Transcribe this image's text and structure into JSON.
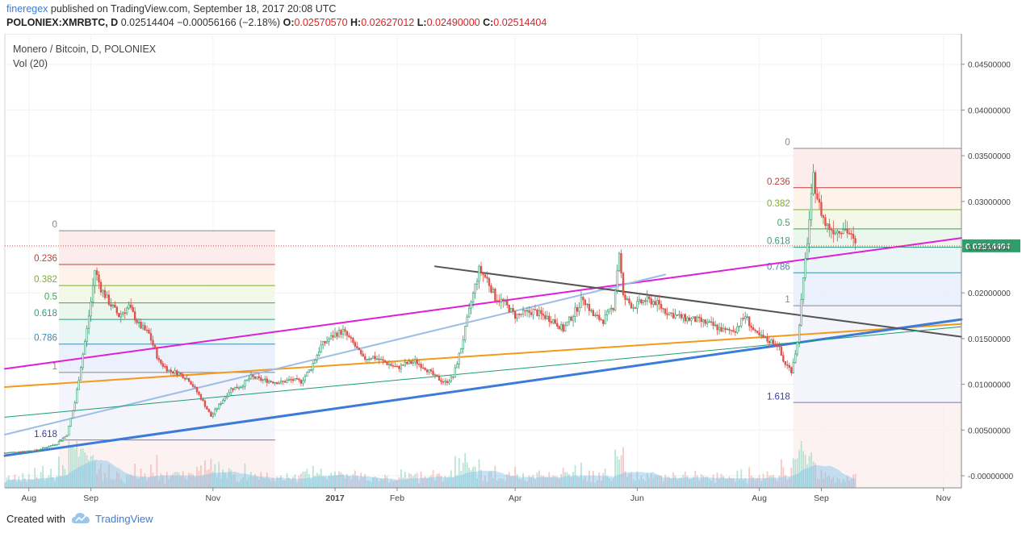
{
  "header": {
    "author": "fineregex",
    "published": "published on TradingView.com, September 18, 2017 20:08 UTC",
    "symbol": "POLONIEX:XMRBTC, D",
    "last": "0.02514404",
    "change": "−0.00056166 (−2.18%)",
    "o_label": "O:",
    "o_value": "0.02570570",
    "h_label": "H:",
    "h_value": "0.02627012",
    "l_label": "L:",
    "l_value": "0.02490000",
    "c_label": "C:",
    "c_value": "0.02514404"
  },
  "legend": {
    "title": "Monero / Bitcoin, D, POLONIEX",
    "volume": "Vol (20)"
  },
  "footer": {
    "created_with": "Created with",
    "brand": "TradingView"
  },
  "colors": {
    "up": "#2e9e6b",
    "down": "#e0514b",
    "magenta": "#e01ed6",
    "orange": "#f49a16",
    "blue": "#3d7bd9",
    "light_blue": "#9dbde8",
    "gray": "#555555",
    "green": "#1a9e6e",
    "last_price": "#2e9e6b",
    "volume": "#7ec3ea"
  },
  "chart_data": {
    "type": "candlestick",
    "title": "Monero / Bitcoin, D, POLONIEX",
    "y_ticks": [
      "0.04500000",
      "0.04000000",
      "0.03500000",
      "0.03000000",
      "0.02500000",
      "0.02000000",
      "0.01500000",
      "0.01000000",
      "0.00500000",
      "-0.00000000"
    ],
    "y_tick_values": [
      0.045,
      0.04,
      0.035,
      0.03,
      0.025,
      0.02,
      0.015,
      0.01,
      0.005,
      0.0
    ],
    "ylim": [
      0.0,
      0.045
    ],
    "x_ticks": [
      "Aug",
      "Sep",
      "Nov",
      "2017",
      "Feb",
      "Apr",
      "Jun",
      "Aug",
      "Sep",
      "Nov"
    ],
    "x_tick_dates": [
      "2016-08-01",
      "2016-09-01",
      "2016-11-01",
      "2017-01-01",
      "2017-02-01",
      "2017-04-01",
      "2017-06-01",
      "2017-08-01",
      "2017-09-01",
      "2017-11-01"
    ],
    "last_price": "0.02514404",
    "last_price_value": 0.02514404,
    "price_path": [
      [
        "2016-07-20",
        0.0025
      ],
      [
        "2016-08-05",
        0.0028
      ],
      [
        "2016-08-15",
        0.0035
      ],
      [
        "2016-08-20",
        0.0045
      ],
      [
        "2016-08-24",
        0.008
      ],
      [
        "2016-08-27",
        0.012
      ],
      [
        "2016-08-30",
        0.016
      ],
      [
        "2016-09-01",
        0.019
      ],
      [
        "2016-09-03",
        0.0225
      ],
      [
        "2016-09-06",
        0.0205
      ],
      [
        "2016-09-10",
        0.019
      ],
      [
        "2016-09-15",
        0.0175
      ],
      [
        "2016-09-20",
        0.0185
      ],
      [
        "2016-09-25",
        0.0165
      ],
      [
        "2016-09-30",
        0.0155
      ],
      [
        "2016-10-05",
        0.0125
      ],
      [
        "2016-10-10",
        0.0115
      ],
      [
        "2016-10-15",
        0.0112
      ],
      [
        "2016-10-20",
        0.0105
      ],
      [
        "2016-10-26",
        0.0085
      ],
      [
        "2016-10-31",
        0.0065
      ],
      [
        "2016-11-05",
        0.008
      ],
      [
        "2016-11-10",
        0.0095
      ],
      [
        "2016-11-15",
        0.0098
      ],
      [
        "2016-11-20",
        0.0108
      ],
      [
        "2016-11-25",
        0.0105
      ],
      [
        "2016-12-01",
        0.0103
      ],
      [
        "2016-12-05",
        0.0102
      ],
      [
        "2016-12-10",
        0.0105
      ],
      [
        "2016-12-15",
        0.0103
      ],
      [
        "2016-12-20",
        0.0118
      ],
      [
        "2016-12-25",
        0.0142
      ],
      [
        "2017-01-01",
        0.0155
      ],
      [
        "2017-01-05",
        0.0158
      ],
      [
        "2017-01-10",
        0.0145
      ],
      [
        "2017-01-15",
        0.0128
      ],
      [
        "2017-01-20",
        0.013
      ],
      [
        "2017-01-25",
        0.0125
      ],
      [
        "2017-02-01",
        0.0118
      ],
      [
        "2017-02-05",
        0.0122
      ],
      [
        "2017-02-10",
        0.0125
      ],
      [
        "2017-02-15",
        0.0118
      ],
      [
        "2017-02-20",
        0.0108
      ],
      [
        "2017-02-25",
        0.0102
      ],
      [
        "2017-03-01",
        0.0108
      ],
      [
        "2017-03-05",
        0.014
      ],
      [
        "2017-03-10",
        0.019
      ],
      [
        "2017-03-14",
        0.0225
      ],
      [
        "2017-03-18",
        0.0215
      ],
      [
        "2017-03-22",
        0.0195
      ],
      [
        "2017-03-26",
        0.019
      ],
      [
        "2017-04-01",
        0.0175
      ],
      [
        "2017-04-10",
        0.018
      ],
      [
        "2017-04-20",
        0.017
      ],
      [
        "2017-04-25",
        0.016
      ],
      [
        "2017-05-01",
        0.018
      ],
      [
        "2017-05-05",
        0.0195
      ],
      [
        "2017-05-10",
        0.0175
      ],
      [
        "2017-05-15",
        0.017
      ],
      [
        "2017-05-20",
        0.0185
      ],
      [
        "2017-05-23",
        0.0245
      ],
      [
        "2017-05-25",
        0.0195
      ],
      [
        "2017-05-30",
        0.0185
      ],
      [
        "2017-06-05",
        0.0192
      ],
      [
        "2017-06-10",
        0.019
      ],
      [
        "2017-06-15",
        0.018
      ],
      [
        "2017-06-20",
        0.0175
      ],
      [
        "2017-06-25",
        0.0172
      ],
      [
        "2017-07-01",
        0.017
      ],
      [
        "2017-07-08",
        0.0165
      ],
      [
        "2017-07-15",
        0.0158
      ],
      [
        "2017-07-20",
        0.016
      ],
      [
        "2017-07-25",
        0.0175
      ],
      [
        "2017-07-30",
        0.0155
      ],
      [
        "2017-08-05",
        0.0148
      ],
      [
        "2017-08-10",
        0.0145
      ],
      [
        "2017-08-13",
        0.0125
      ],
      [
        "2017-08-17",
        0.0115
      ],
      [
        "2017-08-20",
        0.0145
      ],
      [
        "2017-08-22",
        0.019
      ],
      [
        "2017-08-24",
        0.0235
      ],
      [
        "2017-08-26",
        0.028
      ],
      [
        "2017-08-28",
        0.0325
      ],
      [
        "2017-08-31",
        0.0295
      ],
      [
        "2017-09-03",
        0.0275
      ],
      [
        "2017-09-06",
        0.027
      ],
      [
        "2017-09-09",
        0.0268
      ],
      [
        "2017-09-12",
        0.0272
      ],
      [
        "2017-09-15",
        0.0265
      ],
      [
        "2017-09-18",
        0.02514
      ]
    ],
    "fib_levels_2016": {
      "labels": [
        "0",
        "0.236",
        "0.382",
        "0.5",
        "0.618",
        "0.786",
        "1",
        "1.618"
      ],
      "values": [
        0.0268,
        0.0231,
        0.0208,
        0.0189,
        0.0171,
        0.0144,
        0.0113,
        0.0039
      ]
    },
    "fib_levels_2017": {
      "labels": [
        "0",
        "0.236",
        "0.382",
        "0.5",
        "0.618",
        "0.786",
        "1",
        "1.618"
      ],
      "values": [
        0.0358,
        0.0315,
        0.0291,
        0.027,
        0.025,
        0.0222,
        0.0186,
        0.008
      ]
    },
    "trendlines": [
      {
        "color": "magenta",
        "points": [
          [
            "2016-07-20",
            0.0117
          ],
          [
            "2017-11-10",
            0.026
          ]
        ]
      },
      {
        "color": "orange",
        "points": [
          [
            "2016-07-20",
            0.0097
          ],
          [
            "2017-11-10",
            0.0166
          ]
        ]
      },
      {
        "color": "blue",
        "points": [
          [
            "2016-07-20",
            0.0022
          ],
          [
            "2017-11-10",
            0.0171
          ]
        ]
      },
      {
        "color": "light_blue",
        "points": [
          [
            "2016-07-20",
            0.0045
          ],
          [
            "2017-06-15",
            0.022
          ]
        ]
      },
      {
        "color": "gray",
        "points": [
          [
            "2017-02-20",
            0.0229
          ],
          [
            "2017-11-10",
            0.0152
          ]
        ]
      },
      {
        "color": "green",
        "points": [
          [
            "2016-07-20",
            0.0064
          ],
          [
            "2017-11-10",
            0.0163
          ]
        ]
      }
    ],
    "grid": true,
    "legend_position": "top-left"
  }
}
